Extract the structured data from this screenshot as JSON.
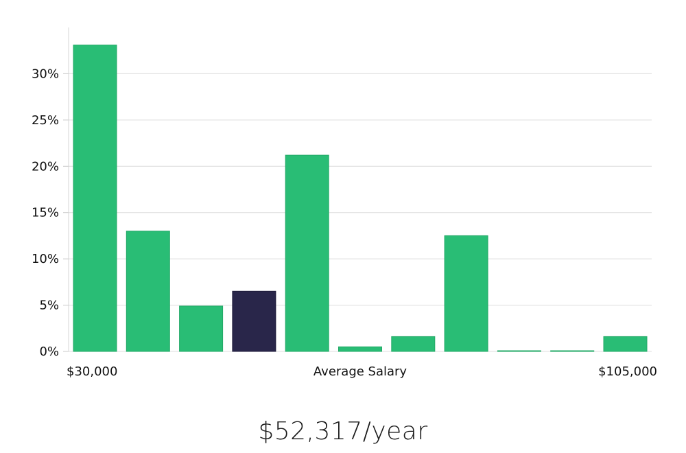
{
  "chart_data": {
    "type": "bar",
    "title": "",
    "xlabel": "Average Salary",
    "ylabel": "",
    "x_start_label": "$30,000",
    "x_end_label": "$105,000",
    "ylim": [
      0,
      35
    ],
    "yticks": [
      0,
      5,
      10,
      15,
      20,
      25,
      30
    ],
    "ytick_labels": [
      "0%",
      "5%",
      "10%",
      "15%",
      "20%",
      "25%",
      "30%"
    ],
    "grid": true,
    "values": [
      33.1,
      13.0,
      4.9,
      6.5,
      21.2,
      0.5,
      1.6,
      12.5,
      0.05,
      0.05,
      1.6
    ],
    "highlight_index": 3,
    "colors": {
      "bar": "#29bd75",
      "bar_highlight": "#29264a",
      "grid": "#dcdcdc"
    }
  },
  "salary": {
    "average_label": "$52,317/year"
  }
}
